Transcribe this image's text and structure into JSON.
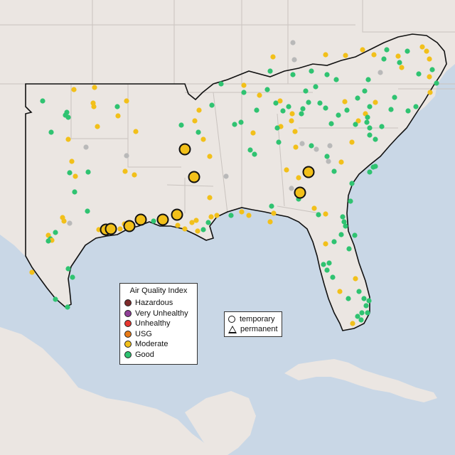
{
  "legend": {
    "title": "Air Quality Index",
    "items": [
      {
        "label": "Hazardous",
        "color": "#7e2a2a"
      },
      {
        "label": "Very Unhealthy",
        "color": "#8f3f97"
      },
      {
        "label": "Unhealthy",
        "color": "#e8372f"
      },
      {
        "label": "USG",
        "color": "#e87a16"
      },
      {
        "label": "Moderate",
        "color": "#f2c01a"
      },
      {
        "label": "Good",
        "color": "#2fc371"
      }
    ]
  },
  "monitor_types": {
    "temporary": "temporary",
    "permanent": "permanent"
  },
  "colors": {
    "water": "#c9d7e6",
    "land": "#ebe6e2",
    "no_data": "#b9b9b9"
  }
}
